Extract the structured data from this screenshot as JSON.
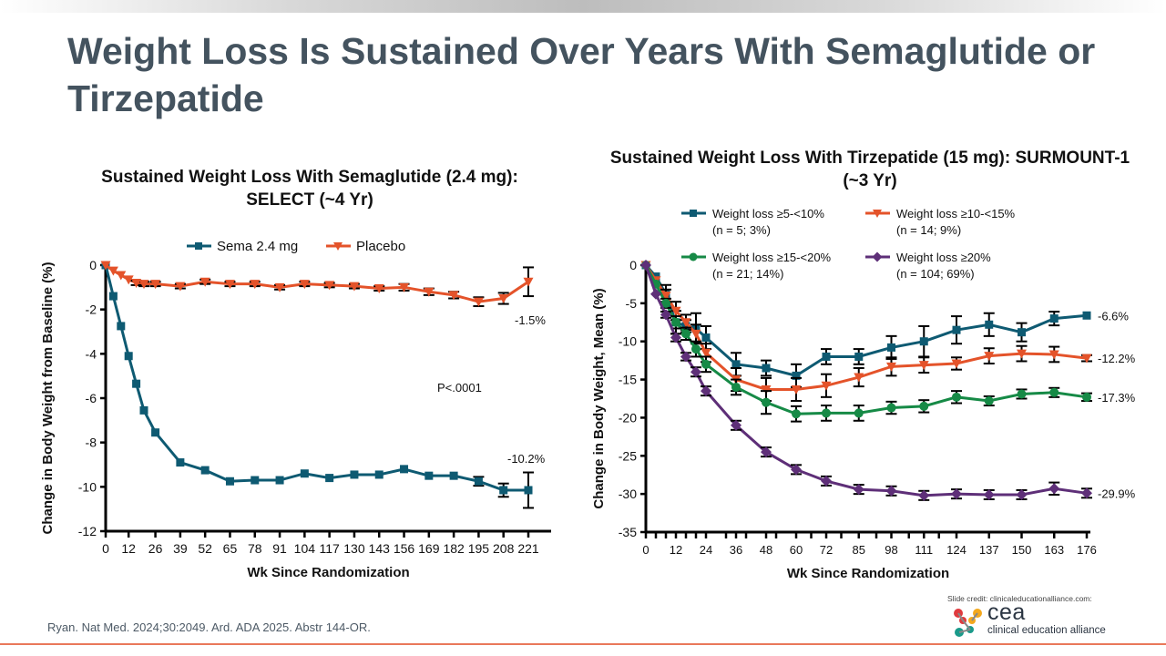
{
  "slide": {
    "title": "Weight Loss Is Sustained Over Years With Semaglutide or Tirzepatide",
    "reference": "Ryan. Nat Med. 2024;30:2049. Ard. ADA 2025. Abstr 144-OR.",
    "credit": "Slide credit: clinicaleducationalliance.com:",
    "logo": {
      "abbr": "cea",
      "name": "clinical education alliance",
      "colors": [
        "#e03a3e",
        "#f4a81d",
        "#1a9a8a"
      ]
    }
  },
  "chart_data": [
    {
      "type": "line",
      "title": "Sustained Weight Loss With Semaglutide (2.4 mg): SELECT (~4 Yr)",
      "xlabel": "Wk Since Randomization",
      "ylabel": "Change in Body Weight from Baseline (%)",
      "ylim": [
        -12,
        0
      ],
      "yticks": [
        0,
        -2,
        -4,
        -6,
        -8,
        -10,
        -12
      ],
      "xlim": [
        0,
        221
      ],
      "xticks": [
        0,
        12,
        26,
        39,
        52,
        65,
        78,
        91,
        104,
        117,
        130,
        143,
        156,
        169,
        182,
        195,
        208,
        221
      ],
      "legend": "top",
      "annotation": "P<.0001",
      "x": [
        0,
        4,
        8,
        12,
        16,
        20,
        26,
        39,
        52,
        65,
        78,
        91,
        104,
        117,
        130,
        143,
        156,
        169,
        182,
        195,
        208,
        221
      ],
      "series": [
        {
          "name": "Sema 2.4 mg",
          "color": "#0e5a72",
          "marker": "square",
          "end_label": "-10.2%",
          "values": [
            0,
            -1.4,
            -2.75,
            -4.1,
            -5.35,
            -6.55,
            -7.55,
            -8.9,
            -9.25,
            -9.75,
            -9.7,
            -9.7,
            -9.4,
            -9.6,
            -9.45,
            -9.45,
            -9.2,
            -9.5,
            -9.5,
            -9.75,
            -10.15,
            -10.15
          ],
          "errors": [
            0,
            0,
            0,
            0,
            0,
            0,
            0,
            0,
            0,
            0,
            0,
            0,
            0,
            0,
            0,
            0,
            0,
            0,
            0,
            0.2,
            0.3,
            0.8
          ]
        },
        {
          "name": "Placebo",
          "color": "#e4532a",
          "marker": "triangle-down",
          "end_label": "-1.5%",
          "values": [
            0,
            -0.25,
            -0.45,
            -0.65,
            -0.8,
            -0.85,
            -0.85,
            -0.95,
            -0.75,
            -0.85,
            -0.85,
            -1.0,
            -0.85,
            -0.9,
            -0.95,
            -1.05,
            -1.0,
            -1.2,
            -1.35,
            -1.65,
            -1.5,
            -0.75
          ],
          "errors": [
            0,
            0,
            0,
            0,
            0.1,
            0.1,
            0.1,
            0.1,
            0.1,
            0.1,
            0.1,
            0.1,
            0.1,
            0.1,
            0.1,
            0.1,
            0.15,
            0.15,
            0.15,
            0.2,
            0.25,
            0.65
          ]
        }
      ]
    },
    {
      "type": "line",
      "title": "Sustained Weight Loss With Tirzepatide (15 mg): SURMOUNT-1 (~3 Yr)",
      "xlabel": "Wk Since Randomization",
      "ylabel": "Change in Body Weight, Mean (%)",
      "ylim": [
        -35,
        0
      ],
      "yticks": [
        0,
        -5,
        -10,
        -15,
        -20,
        -25,
        -30,
        -35
      ],
      "xlim": [
        0,
        176
      ],
      "xticks": [
        0,
        12,
        24,
        36,
        48,
        60,
        72,
        85,
        98,
        111,
        124,
        137,
        150,
        163,
        176
      ],
      "legend": "top",
      "x": [
        0,
        4,
        8,
        12,
        16,
        20,
        24,
        36,
        48,
        60,
        72,
        85,
        98,
        111,
        124,
        137,
        150,
        163,
        176
      ],
      "series": [
        {
          "name": "Weight loss ≥5-<10%",
          "n": "(n = 5; 3%)",
          "color": "#0e5a72",
          "marker": "square",
          "end_label": "-6.6%",
          "values": [
            0,
            -1.5,
            -3.8,
            -7.5,
            -8.0,
            -8.3,
            -9.5,
            -13.0,
            -13.5,
            -14.5,
            -12.0,
            -12.0,
            -10.8,
            -10.0,
            -8.5,
            -7.8,
            -8.8,
            -7.0,
            -6.6
          ],
          "errors": [
            0,
            0,
            1.2,
            1.5,
            0.8,
            2.0,
            1.5,
            1.5,
            1.0,
            1.5,
            1.0,
            1.0,
            1.5,
            2.0,
            1.8,
            1.5,
            1.2,
            0.9,
            0
          ]
        },
        {
          "name": "Weight loss ≥10-<15%",
          "n": "(n = 14; 9%)",
          "color": "#e4532a",
          "marker": "triangle-down",
          "end_label": "-12.2%",
          "values": [
            0,
            -2.0,
            -4.0,
            -6.0,
            -7.5,
            -9.0,
            -11.5,
            -15.0,
            -16.3,
            -16.3,
            -15.8,
            -14.7,
            -13.3,
            -13.1,
            -12.9,
            -11.9,
            -11.6,
            -11.7,
            -12.2
          ],
          "errors": [
            0,
            0,
            0.8,
            1.2,
            1.0,
            1.2,
            1.2,
            1.5,
            1.5,
            1.5,
            1.5,
            1.2,
            1.2,
            1.0,
            0.8,
            1.0,
            1.0,
            1.0,
            0.4
          ]
        },
        {
          "name": "Weight loss ≥15-<20%",
          "n": "(n = 21; 14%)",
          "color": "#168a46",
          "marker": "circle",
          "end_label": "-17.3%",
          "values": [
            0,
            -2.5,
            -5.0,
            -7.5,
            -9.0,
            -11.0,
            -13.0,
            -16.0,
            -18.0,
            -19.5,
            -19.4,
            -19.4,
            -18.7,
            -18.5,
            -17.3,
            -17.8,
            -16.9,
            -16.7,
            -17.3
          ],
          "errors": [
            0,
            0,
            0.6,
            0.8,
            0.8,
            1.0,
            1.0,
            1.0,
            1.5,
            1.0,
            1.0,
            1.0,
            0.8,
            0.8,
            0.8,
            0.6,
            0.6,
            0.6,
            0.5
          ]
        },
        {
          "name": "Weight loss ≥20%",
          "n": "(n = 104; 69%)",
          "color": "#5e2f78",
          "marker": "diamond",
          "end_label": "-29.9%",
          "values": [
            0,
            -3.8,
            -6.5,
            -9.5,
            -12.0,
            -14.0,
            -16.5,
            -21.0,
            -24.5,
            -26.8,
            -28.3,
            -29.4,
            -29.6,
            -30.2,
            -30.0,
            -30.1,
            -30.1,
            -29.3,
            -29.9
          ],
          "errors": [
            0,
            0,
            0.4,
            0.5,
            0.5,
            0.6,
            0.6,
            0.6,
            0.6,
            0.6,
            0.6,
            0.6,
            0.6,
            0.6,
            0.6,
            0.6,
            0.6,
            0.8,
            0.6
          ]
        }
      ]
    }
  ]
}
